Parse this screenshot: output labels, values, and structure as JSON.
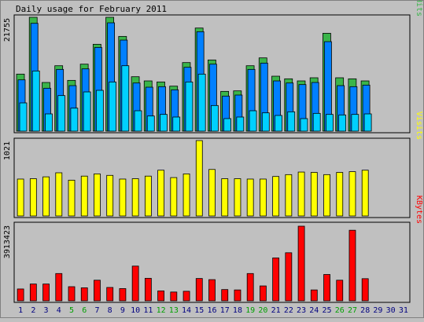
{
  "title": "Daily usage for February 2011",
  "colors": {
    "background": "#c0c0c0",
    "hits": "#3ab54a",
    "files": "#0080ff",
    "pages": "#00d0ff",
    "visits": "#ffff00",
    "kbytes": "#ff0000",
    "weekday_label": "#000080",
    "weekend_label": "#00a000"
  },
  "chart_data": [
    {
      "type": "bar",
      "title": "Daily usage for February 2011",
      "max_label": "21755",
      "legend": [
        "Pages",
        "/",
        "Files",
        "/",
        "Hits"
      ],
      "categories": [
        "1",
        "2",
        "3",
        "4",
        "5",
        "6",
        "7",
        "8",
        "9",
        "10",
        "11",
        "12",
        "13",
        "14",
        "15",
        "16",
        "17",
        "18",
        "19",
        "20",
        "21",
        "22",
        "23",
        "24",
        "25",
        "26",
        "27",
        "28",
        "29",
        "30",
        "31"
      ],
      "weekend_days": [
        5,
        6,
        12,
        13,
        19,
        20,
        26,
        27
      ],
      "series": [
        {
          "name": "Hits",
          "values": [
            10900,
            21755,
            9300,
            12500,
            9700,
            12800,
            16600,
            21755,
            18100,
            10400,
            9600,
            9400,
            8600,
            13100,
            19700,
            13600,
            7600,
            7700,
            12500,
            14000,
            10500,
            10000,
            9600,
            10200,
            18700,
            10200,
            10000,
            9600,
            0,
            0,
            0
          ]
        },
        {
          "name": "Files",
          "values": [
            9800,
            20600,
            8200,
            11800,
            8700,
            11900,
            16000,
            20700,
            17400,
            9200,
            8400,
            8500,
            7900,
            12200,
            19000,
            12800,
            6700,
            6900,
            11800,
            13000,
            9600,
            9200,
            8900,
            9300,
            17100,
            8700,
            8500,
            8800,
            0,
            0,
            0
          ]
        },
        {
          "name": "Pages",
          "values": [
            5400,
            11500,
            3300,
            6800,
            4400,
            7500,
            7800,
            9400,
            12500,
            3900,
            2900,
            3200,
            2700,
            9400,
            10900,
            4900,
            2400,
            2700,
            3900,
            3500,
            3000,
            3700,
            2400,
            3400,
            3200,
            3100,
            3200,
            3300,
            0,
            0,
            0
          ]
        }
      ]
    },
    {
      "type": "bar",
      "title": "",
      "max_label": "1021",
      "legend": [
        "Visits"
      ],
      "categories": [
        "1",
        "2",
        "3",
        "4",
        "5",
        "6",
        "7",
        "8",
        "9",
        "10",
        "11",
        "12",
        "13",
        "14",
        "15",
        "16",
        "17",
        "18",
        "19",
        "20",
        "21",
        "22",
        "23",
        "24",
        "25",
        "26",
        "27",
        "28",
        "29",
        "30",
        "31"
      ],
      "series": [
        {
          "name": "Visits",
          "values": [
            500,
            505,
            530,
            585,
            485,
            540,
            570,
            550,
            500,
            505,
            540,
            620,
            520,
            570,
            1021,
            630,
            505,
            505,
            500,
            500,
            535,
            560,
            595,
            590,
            560,
            590,
            600,
            620,
            0,
            0,
            0
          ]
        }
      ]
    },
    {
      "type": "bar",
      "title": "",
      "max_label": "3913423",
      "legend": [
        "KBytes"
      ],
      "categories": [
        "1",
        "2",
        "3",
        "4",
        "5",
        "6",
        "7",
        "8",
        "9",
        "10",
        "11",
        "12",
        "13",
        "14",
        "15",
        "16",
        "17",
        "18",
        "19",
        "20",
        "21",
        "22",
        "23",
        "24",
        "25",
        "26",
        "27",
        "28",
        "29",
        "30",
        "31"
      ],
      "series": [
        {
          "name": "KBytes",
          "values": [
            620000,
            880000,
            880000,
            1430000,
            740000,
            680000,
            1080000,
            700000,
            640000,
            1820000,
            1180000,
            520000,
            460000,
            500000,
            1170000,
            1110000,
            590000,
            570000,
            1430000,
            780000,
            2250000,
            2520000,
            3913423,
            570000,
            1380000,
            1080000,
            3700000,
            1160000,
            0,
            0,
            0
          ]
        }
      ]
    }
  ]
}
